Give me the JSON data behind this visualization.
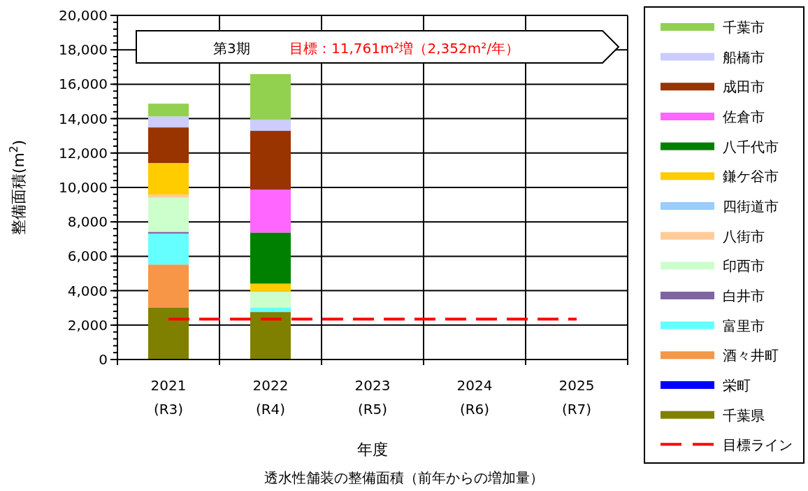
{
  "chart_data": {
    "type": "bar",
    "stacked": true,
    "categories": [
      "2021\n(R3)",
      "2022\n(R4)",
      "2023\n(R5)",
      "2024\n(R6)",
      "2025\n(R7)"
    ],
    "series": [
      {
        "name": "千葉県",
        "color": "#808000",
        "values": [
          3030,
          2760,
          null,
          null,
          null
        ]
      },
      {
        "name": "栄町",
        "color": "#0000ff",
        "values": [
          null,
          null,
          null,
          null,
          null
        ]
      },
      {
        "name": "酒々井町",
        "color": "#f79646",
        "values": [
          2490,
          null,
          null,
          null,
          null
        ]
      },
      {
        "name": "富里市",
        "color": "#66ffff",
        "values": [
          1800,
          270,
          null,
          null,
          null
        ]
      },
      {
        "name": "白井市",
        "color": "#8064a2",
        "values": [
          100,
          null,
          null,
          null,
          null
        ]
      },
      {
        "name": "印西市",
        "color": "#ccffcc",
        "values": [
          1990,
          920,
          null,
          null,
          null
        ]
      },
      {
        "name": "八街市",
        "color": "#ffcc99",
        "values": [
          180,
          null,
          null,
          null,
          null
        ]
      },
      {
        "name": "四街道市",
        "color": "#99ccff",
        "values": [
          null,
          null,
          null,
          null,
          null
        ]
      },
      {
        "name": "鎌ケ谷市",
        "color": "#ffcc00",
        "values": [
          1830,
          460,
          null,
          null,
          null
        ]
      },
      {
        "name": "八千代市",
        "color": "#008000",
        "values": [
          null,
          2970,
          null,
          null,
          null
        ]
      },
      {
        "name": "佐倉市",
        "color": "#ff66ff",
        "values": [
          null,
          2490,
          null,
          null,
          null
        ]
      },
      {
        "name": "成田市",
        "color": "#993300",
        "values": [
          2070,
          3420,
          null,
          null,
          null
        ]
      },
      {
        "name": "船橋市",
        "color": "#ccccff",
        "values": [
          640,
          640,
          null,
          null,
          null
        ]
      },
      {
        "name": "千葉市",
        "color": "#92d050",
        "values": [
          740,
          2660,
          null,
          null,
          null
        ]
      }
    ],
    "ylim": [
      0,
      20000
    ],
    "yticks": [
      {
        "value": 0,
        "label": "0"
      },
      {
        "value": 2000,
        "label": "2,000"
      },
      {
        "value": 4000,
        "label": "4,000"
      },
      {
        "value": 6000,
        "label": "6,000"
      },
      {
        "value": 8000,
        "label": "8,000"
      },
      {
        "value": 10000,
        "label": "10,000"
      },
      {
        "value": 12000,
        "label": "12,000"
      },
      {
        "value": 14000,
        "label": "14,000"
      },
      {
        "value": 16000,
        "label": "16,000"
      },
      {
        "value": 18000,
        "label": "18,000"
      },
      {
        "value": 20000,
        "label": "20,000"
      }
    ],
    "ref_lines": [
      {
        "axis": "y",
        "value": 2352,
        "label": "目標ライン",
        "color": "#ff0000",
        "line_style": "dashed"
      }
    ],
    "ylabel": "整備面積(m$^{2}$)",
    "xlabel": "年度",
    "annotations": [
      "第3期",
      "目標：11,761m²増（2,352m²/年）",
      "透水性舗装の整備面積（前年からの増加量）"
    ],
    "grid": true,
    "legend": "right"
  }
}
